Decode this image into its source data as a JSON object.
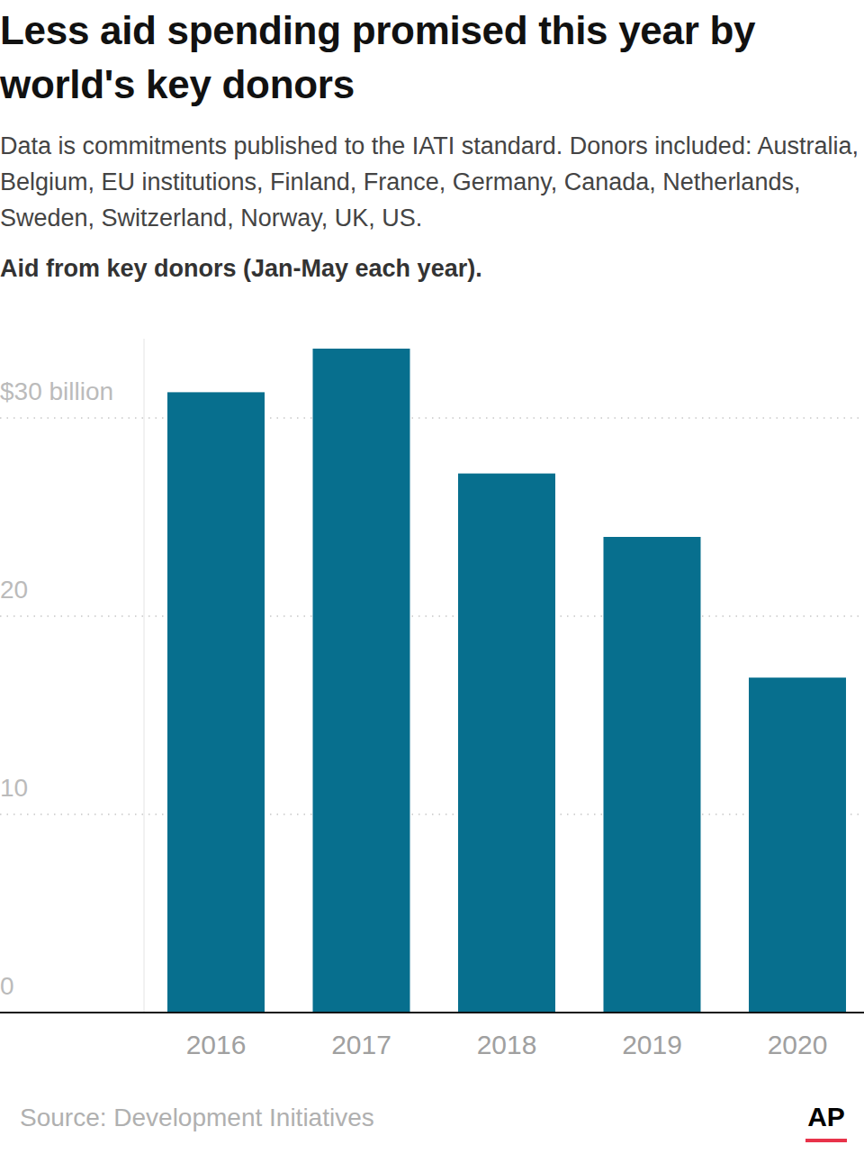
{
  "chart_data": {
    "type": "bar",
    "title": "Less aid spending promised this year by world's key donors",
    "subtitle": "Data is commitments published to the IATI standard. Donors included: Australia, Belgium, EU institutions, Finland, France, Germany, Canada, Netherlands, Sweden, Switzerland, Norway, UK, US.",
    "y_label": "Aid from key donors (Jan-May each year).",
    "source": "Source: Development Initiatives",
    "credit": "AP",
    "categories": [
      "2016",
      "2017",
      "2018",
      "2019",
      "2020"
    ],
    "values": [
      31.3,
      33.5,
      27.2,
      24.0,
      16.9
    ],
    "color": "#076f8e",
    "ylim": [
      0,
      34
    ],
    "yticks": [
      0,
      10,
      20,
      {
        "value": 30,
        "label": "$30 billion"
      }
    ],
    "grid": true
  }
}
